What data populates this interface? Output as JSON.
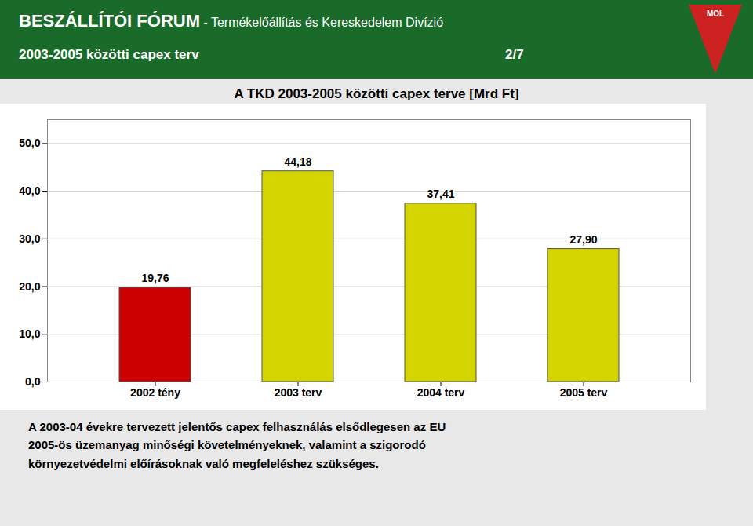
{
  "chart_data": {
    "type": "bar",
    "title": "A TKD 2003-2005 közötti capex terve [Mrd Ft]",
    "annotations": [
      "BESZÁLLÍTÓI FÓRUM",
      " - Termékelőállítás és Kereskedelem Divízió",
      "2003-2005 közötti capex terv",
      "2/7",
      "MOL",
      "A 2003-04 évekre tervezett jelentős capex felhasználás elsődlegesen az EU\n2005-ös üzemanyag minőségi követelményeknek, valamint a szigorodó\nkörnyezetvédelmi előírásoknak való megfeleléshez szükséges."
    ],
    "categories": [
      "2002 tény",
      "2003 terv",
      "2004 terv",
      "2005 terv"
    ],
    "values": [
      19.76,
      44.18,
      37.41,
      27.9
    ],
    "value_labels": [
      "19,76",
      "44,18",
      "37,41",
      "27,90"
    ],
    "colors": [
      "#cc0000",
      "#d4d400",
      "#d4d400",
      "#d4d400"
    ],
    "ylim": [
      0,
      55
    ],
    "yticks": [
      {
        "value": 0,
        "label": "0,0"
      },
      {
        "value": 10,
        "label": "10,0"
      },
      {
        "value": 20,
        "label": "20,0"
      },
      {
        "value": 30,
        "label": "30,0"
      },
      {
        "value": 40,
        "label": "40,0"
      },
      {
        "value": 50,
        "label": "50,0"
      }
    ],
    "grid": true,
    "data_labels": true
  }
}
